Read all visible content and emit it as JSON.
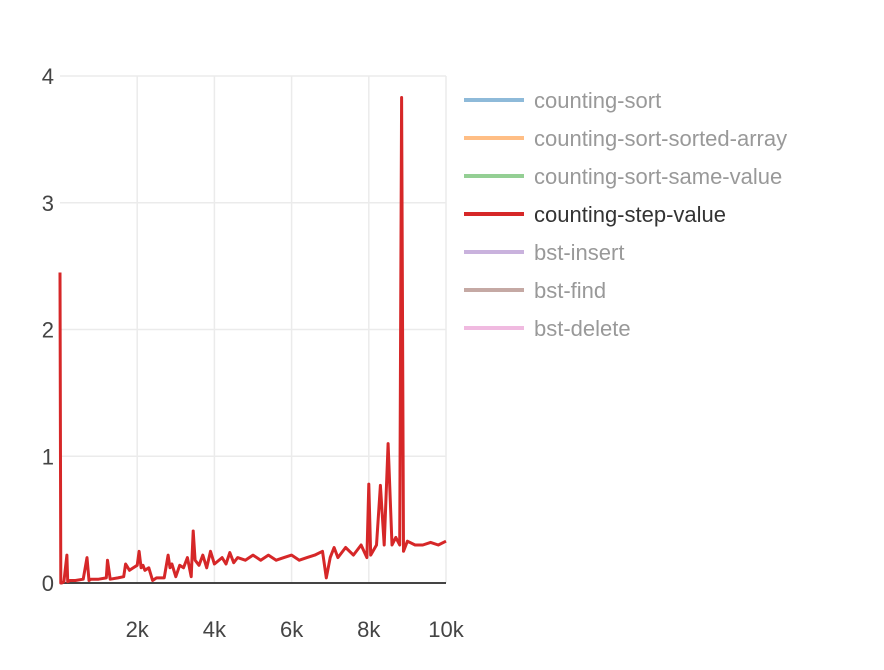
{
  "chart_data": {
    "type": "line",
    "title": "",
    "xlabel": "",
    "ylabel": "",
    "xlim": [
      0,
      10000
    ],
    "ylim": [
      0,
      4
    ],
    "x_ticks": [
      {
        "value": 2000,
        "label": "2k"
      },
      {
        "value": 4000,
        "label": "4k"
      },
      {
        "value": 6000,
        "label": "6k"
      },
      {
        "value": 8000,
        "label": "8k"
      },
      {
        "value": 10000,
        "label": "10k"
      }
    ],
    "y_ticks": [
      {
        "value": 0,
        "label": "0"
      },
      {
        "value": 1,
        "label": "1"
      },
      {
        "value": 2,
        "label": "2"
      },
      {
        "value": 3,
        "label": "3"
      },
      {
        "value": 4,
        "label": "4"
      }
    ],
    "grid": true,
    "legend_position": "right",
    "series": [
      {
        "name": "counting-sort",
        "color": "#1f77b4",
        "visible": false
      },
      {
        "name": "counting-sort-sorted-array",
        "color": "#ff7f0e",
        "visible": false
      },
      {
        "name": "counting-sort-same-value",
        "color": "#2ca02c",
        "visible": false
      },
      {
        "name": "counting-step-value",
        "color": "#d62728",
        "visible": true,
        "x": [
          0,
          20,
          50,
          100,
          180,
          200,
          260,
          400,
          600,
          700,
          750,
          800,
          1000,
          1200,
          1230,
          1300,
          1500,
          1650,
          1700,
          1800,
          1900,
          2000,
          2050,
          2100,
          2150,
          2200,
          2300,
          2400,
          2500,
          2700,
          2800,
          2850,
          2900,
          3000,
          3100,
          3200,
          3300,
          3400,
          3450,
          3500,
          3600,
          3700,
          3800,
          3900,
          4000,
          4200,
          4300,
          4400,
          4500,
          4600,
          4800,
          5000,
          5200,
          5400,
          5600,
          5800,
          6000,
          6200,
          6400,
          6600,
          6800,
          6900,
          7000,
          7100,
          7200,
          7400,
          7600,
          7800,
          7950,
          8000,
          8050,
          8200,
          8300,
          8400,
          8500,
          8600,
          8700,
          8800,
          8850,
          8900,
          9000,
          9200,
          9400,
          9600,
          9800,
          10000
        ],
        "y": [
          2.45,
          0.0,
          0.0,
          0.01,
          0.22,
          0.01,
          0.02,
          0.02,
          0.03,
          0.2,
          0.02,
          0.03,
          0.03,
          0.04,
          0.18,
          0.03,
          0.04,
          0.05,
          0.15,
          0.1,
          0.12,
          0.14,
          0.25,
          0.12,
          0.14,
          0.1,
          0.12,
          0.02,
          0.04,
          0.04,
          0.22,
          0.12,
          0.15,
          0.05,
          0.14,
          0.12,
          0.2,
          0.05,
          0.41,
          0.18,
          0.14,
          0.22,
          0.12,
          0.25,
          0.15,
          0.2,
          0.15,
          0.24,
          0.16,
          0.2,
          0.18,
          0.22,
          0.18,
          0.22,
          0.18,
          0.2,
          0.22,
          0.18,
          0.2,
          0.22,
          0.25,
          0.04,
          0.2,
          0.28,
          0.2,
          0.28,
          0.22,
          0.3,
          0.2,
          0.78,
          0.22,
          0.3,
          0.77,
          0.3,
          1.1,
          0.3,
          0.36,
          0.3,
          3.83,
          0.25,
          0.33,
          0.3,
          0.3,
          0.32,
          0.3,
          0.33
        ]
      },
      {
        "name": "bst-insert",
        "color": "#9467bd",
        "visible": false
      },
      {
        "name": "bst-find",
        "color": "#8c564b",
        "visible": false
      },
      {
        "name": "bst-delete",
        "color": "#e377c2",
        "visible": false
      }
    ]
  }
}
